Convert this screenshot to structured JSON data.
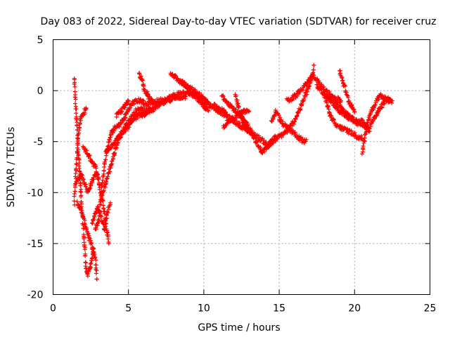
{
  "chart_data": {
    "type": "scatter",
    "title": "Day 083 of 2022, Sidereal Day-to-day VTEC variation (SDTVAR) for receiver cruz",
    "xlabel": "GPS time / hours",
    "ylabel": "SDTVAR / TECUs",
    "xlim": [
      0,
      25
    ],
    "ylim": [
      -20,
      5
    ],
    "xticks": [
      0,
      5,
      10,
      15,
      20,
      25
    ],
    "yticks": [
      5,
      0,
      -5,
      -10,
      -15,
      -20
    ],
    "grid": true,
    "marker": "plus",
    "color": "#ff0000",
    "series": [
      {
        "name": "SDTVAR",
        "tracks": [
          [
            [
              1.4,
              1.2
            ],
            [
              1.5,
              -1.5
            ],
            [
              1.6,
              -4.0
            ],
            [
              1.7,
              -6.5
            ],
            [
              1.8,
              -9.0
            ],
            [
              1.9,
              -11.5
            ],
            [
              2.0,
              -13.5
            ],
            [
              2.1,
              -15.5
            ],
            [
              2.2,
              -17.5
            ],
            [
              2.3,
              -18.2
            ],
            [
              2.5,
              -17.0
            ],
            [
              2.7,
              -15.5
            ]
          ],
          [
            [
              1.4,
              -11.0
            ],
            [
              1.5,
              -8.5
            ],
            [
              1.6,
              -6.0
            ],
            [
              1.7,
              -4.0
            ],
            [
              1.8,
              -3.0
            ],
            [
              1.9,
              -2.5
            ],
            [
              2.0,
              -2.3
            ],
            [
              2.1,
              -2.0
            ],
            [
              2.2,
              -1.8
            ]
          ],
          [
            [
              1.5,
              -9.0
            ],
            [
              1.7,
              -8.5
            ],
            [
              1.9,
              -8.3
            ],
            [
              2.1,
              -9.0
            ],
            [
              2.3,
              -10.0
            ],
            [
              2.5,
              -9.2
            ],
            [
              2.7,
              -8.5
            ],
            [
              2.9,
              -8.2
            ],
            [
              3.1,
              -9.5
            ],
            [
              3.3,
              -11.0
            ],
            [
              3.5,
              -13.0
            ],
            [
              3.7,
              -15.0
            ]
          ],
          [
            [
              1.6,
              -11.0
            ],
            [
              1.8,
              -11.5
            ],
            [
              2.0,
              -12.5
            ],
            [
              2.2,
              -13.5
            ],
            [
              2.4,
              -14.5
            ],
            [
              2.6,
              -15.5
            ],
            [
              2.8,
              -16.5
            ],
            [
              2.9,
              -18.5
            ]
          ],
          [
            [
              2.0,
              -5.5
            ],
            [
              2.2,
              -6.0
            ],
            [
              2.4,
              -6.5
            ],
            [
              2.6,
              -7.0
            ],
            [
              2.8,
              -7.5
            ],
            [
              3.0,
              -8.5
            ]
          ],
          [
            [
              2.6,
              -13.0
            ],
            [
              2.8,
              -12.0
            ],
            [
              3.0,
              -11.5
            ],
            [
              3.2,
              -12.5
            ],
            [
              3.4,
              -13.5
            ],
            [
              3.6,
              -12.0
            ],
            [
              3.8,
              -11.0
            ]
          ],
          [
            [
              2.8,
              -13.5
            ],
            [
              3.0,
              -13.0
            ],
            [
              3.2,
              -10.0
            ],
            [
              3.4,
              -7.5
            ],
            [
              3.6,
              -5.5
            ],
            [
              3.8,
              -4.5
            ],
            [
              4.0,
              -3.8
            ],
            [
              4.3,
              -3.5
            ],
            [
              4.6,
              -3.0
            ],
            [
              4.8,
              -2.5
            ],
            [
              5.0,
              -1.8
            ],
            [
              5.3,
              -1.2
            ],
            [
              5.6,
              -1.0
            ],
            [
              6.0,
              -1.0
            ]
          ],
          [
            [
              3.2,
              -10.5
            ],
            [
              3.4,
              -9.5
            ],
            [
              3.6,
              -8.5
            ],
            [
              3.8,
              -7.5
            ],
            [
              4.0,
              -6.5
            ],
            [
              4.2,
              -5.5
            ],
            [
              4.4,
              -4.5
            ],
            [
              4.6,
              -4.0
            ],
            [
              4.8,
              -3.5
            ],
            [
              5.0,
              -3.0
            ],
            [
              5.5,
              -2.0
            ],
            [
              6.0,
              -1.5
            ],
            [
              6.5,
              -1.2
            ],
            [
              7.0,
              -1.0
            ],
            [
              7.5,
              -0.8
            ],
            [
              8.0,
              -0.5
            ],
            [
              8.5,
              -0.2
            ],
            [
              9.0,
              -0.3
            ],
            [
              9.5,
              -0.5
            ],
            [
              10.0,
              -1.0
            ],
            [
              10.5,
              -1.5
            ],
            [
              11.0,
              -2.0
            ],
            [
              11.5,
              -2.5
            ],
            [
              12.0,
              -3.0
            ],
            [
              12.5,
              -3.5
            ],
            [
              13.0,
              -4.0
            ],
            [
              13.5,
              -4.5
            ],
            [
              14.0,
              -5.0
            ],
            [
              14.3,
              -5.5
            ],
            [
              14.6,
              -5.0
            ],
            [
              15.0,
              -4.5
            ],
            [
              15.5,
              -4.0
            ],
            [
              16.0,
              -3.0
            ],
            [
              16.3,
              -2.0
            ],
            [
              16.6,
              -1.0
            ],
            [
              17.0,
              0.5
            ],
            [
              17.2,
              1.5
            ],
            [
              17.3,
              2.5
            ]
          ],
          [
            [
              3.5,
              -6.0
            ],
            [
              3.8,
              -5.5
            ],
            [
              4.1,
              -5.0
            ],
            [
              4.4,
              -4.5
            ],
            [
              4.7,
              -4.0
            ],
            [
              5.0,
              -3.5
            ],
            [
              5.3,
              -3.0
            ],
            [
              5.6,
              -2.5
            ],
            [
              5.9,
              -2.2
            ],
            [
              6.2,
              -2.0
            ],
            [
              6.5,
              -1.8
            ]
          ],
          [
            [
              4.2,
              -2.5
            ],
            [
              4.5,
              -2.0
            ],
            [
              4.8,
              -1.5
            ],
            [
              5.0,
              -1.0
            ]
          ],
          [
            [
              5.7,
              1.8
            ],
            [
              5.9,
              1.0
            ],
            [
              6.1,
              0.0
            ],
            [
              6.3,
              -0.5
            ],
            [
              6.5,
              -1.0
            ],
            [
              6.7,
              -1.2
            ]
          ],
          [
            [
              5.8,
              -2.5
            ],
            [
              6.1,
              -2.2
            ],
            [
              6.4,
              -2.0
            ],
            [
              6.7,
              -1.8
            ],
            [
              7.0,
              -1.5
            ],
            [
              7.3,
              -1.2
            ],
            [
              7.6,
              -1.0
            ],
            [
              7.9,
              -0.8
            ],
            [
              8.2,
              -0.7
            ],
            [
              8.5,
              -0.6
            ],
            [
              8.8,
              -0.6
            ]
          ],
          [
            [
              7.8,
              1.8
            ],
            [
              8.1,
              1.3
            ],
            [
              8.4,
              0.9
            ],
            [
              8.7,
              0.6
            ],
            [
              9.0,
              0.3
            ],
            [
              9.3,
              0.0
            ],
            [
              9.6,
              -0.3
            ],
            [
              9.9,
              -0.7
            ],
            [
              10.2,
              -1.0
            ]
          ],
          [
            [
              8.5,
              1.0
            ],
            [
              8.8,
              0.5
            ],
            [
              9.1,
              0.0
            ],
            [
              9.4,
              -0.5
            ],
            [
              9.7,
              -1.0
            ],
            [
              10.0,
              -1.5
            ],
            [
              10.3,
              -2.0
            ]
          ],
          [
            [
              10.7,
              -1.5
            ],
            [
              11.0,
              -1.8
            ],
            [
              11.3,
              -2.0
            ],
            [
              11.6,
              -2.5
            ]
          ],
          [
            [
              11.2,
              -0.5
            ],
            [
              11.5,
              -1.0
            ],
            [
              11.8,
              -1.5
            ],
            [
              12.1,
              -2.0
            ],
            [
              12.4,
              -2.5
            ],
            [
              12.7,
              -3.0
            ],
            [
              13.0,
              -3.5
            ],
            [
              13.3,
              -4.5
            ],
            [
              13.6,
              -5.5
            ],
            [
              13.9,
              -6.0
            ],
            [
              14.2,
              -5.5
            ],
            [
              14.5,
              -5.0
            ],
            [
              14.8,
              -4.5
            ]
          ],
          [
            [
              11.3,
              -3.5
            ],
            [
              11.6,
              -3.0
            ],
            [
              11.9,
              -2.8
            ],
            [
              12.2,
              -2.5
            ],
            [
              12.5,
              -2.2
            ],
            [
              12.8,
              -2.0
            ],
            [
              13.0,
              -2.0
            ]
          ],
          [
            [
              12.1,
              -0.5
            ],
            [
              12.3,
              -1.5
            ],
            [
              12.5,
              -2.5
            ],
            [
              12.7,
              -3.5
            ],
            [
              12.9,
              -4.0
            ]
          ],
          [
            [
              14.5,
              -3.0
            ],
            [
              14.8,
              -2.0
            ],
            [
              15.1,
              -3.0
            ],
            [
              15.4,
              -3.5
            ],
            [
              15.7,
              -3.8
            ],
            [
              16.0,
              -4.2
            ],
            [
              16.3,
              -4.6
            ],
            [
              16.6,
              -5.0
            ],
            [
              16.8,
              -4.8
            ]
          ],
          [
            [
              15.5,
              -1.0
            ],
            [
              15.8,
              -0.8
            ],
            [
              16.1,
              -0.5
            ],
            [
              16.4,
              0.0
            ],
            [
              16.7,
              0.5
            ],
            [
              17.0,
              1.0
            ],
            [
              17.3,
              1.5
            ],
            [
              17.5,
              1.0
            ],
            [
              17.8,
              0.5
            ],
            [
              18.1,
              0.0
            ],
            [
              18.4,
              -0.5
            ],
            [
              18.7,
              -1.0
            ],
            [
              19.0,
              -1.5
            ],
            [
              19.3,
              -2.0
            ],
            [
              19.6,
              -2.5
            ],
            [
              19.9,
              -3.0
            ],
            [
              20.2,
              -3.2
            ],
            [
              20.5,
              -3.0
            ],
            [
              20.8,
              -3.5
            ],
            [
              21.0,
              -4.0
            ]
          ],
          [
            [
              17.5,
              0.5
            ],
            [
              17.8,
              0.0
            ],
            [
              18.1,
              -0.5
            ],
            [
              18.4,
              -1.0
            ],
            [
              18.7,
              -1.5
            ],
            [
              19.0,
              -2.0
            ],
            [
              19.3,
              -2.3
            ],
            [
              19.6,
              -2.6
            ],
            [
              19.9,
              -2.8
            ],
            [
              20.2,
              -3.0
            ],
            [
              20.5,
              -3.3
            ],
            [
              20.8,
              -3.6
            ]
          ],
          [
            [
              18.0,
              -0.5
            ],
            [
              18.2,
              -1.5
            ],
            [
              18.4,
              -2.5
            ],
            [
              18.6,
              -3.0
            ],
            [
              18.8,
              -3.5
            ],
            [
              19.0,
              -3.5
            ],
            [
              19.3,
              -3.8
            ],
            [
              19.6,
              -4.0
            ],
            [
              19.9,
              -4.2
            ],
            [
              20.2,
              -4.5
            ],
            [
              20.5,
              -4.7
            ]
          ],
          [
            [
              18.5,
              -0.5
            ],
            [
              18.8,
              -0.8
            ],
            [
              19.1,
              -1.0
            ]
          ],
          [
            [
              19.0,
              2.0
            ],
            [
              19.2,
              1.0
            ],
            [
              19.4,
              0.0
            ],
            [
              19.6,
              -1.0
            ],
            [
              19.8,
              -1.5
            ],
            [
              20.0,
              -2.0
            ]
          ],
          [
            [
              20.5,
              -6.0
            ],
            [
              20.7,
              -4.5
            ],
            [
              20.9,
              -3.0
            ],
            [
              21.1,
              -2.0
            ],
            [
              21.3,
              -1.5
            ],
            [
              21.5,
              -0.8
            ],
            [
              21.7,
              -0.5
            ],
            [
              21.9,
              -0.7
            ],
            [
              22.1,
              -0.8
            ],
            [
              22.3,
              -1.0
            ],
            [
              22.5,
              -1.0
            ]
          ],
          [
            [
              21.0,
              -3.5
            ],
            [
              21.2,
              -3.0
            ],
            [
              21.4,
              -2.5
            ],
            [
              21.6,
              -2.0
            ],
            [
              21.8,
              -1.5
            ],
            [
              22.0,
              -1.0
            ],
            [
              22.2,
              -0.8
            ],
            [
              22.4,
              -0.9
            ]
          ]
        ]
      }
    ]
  }
}
